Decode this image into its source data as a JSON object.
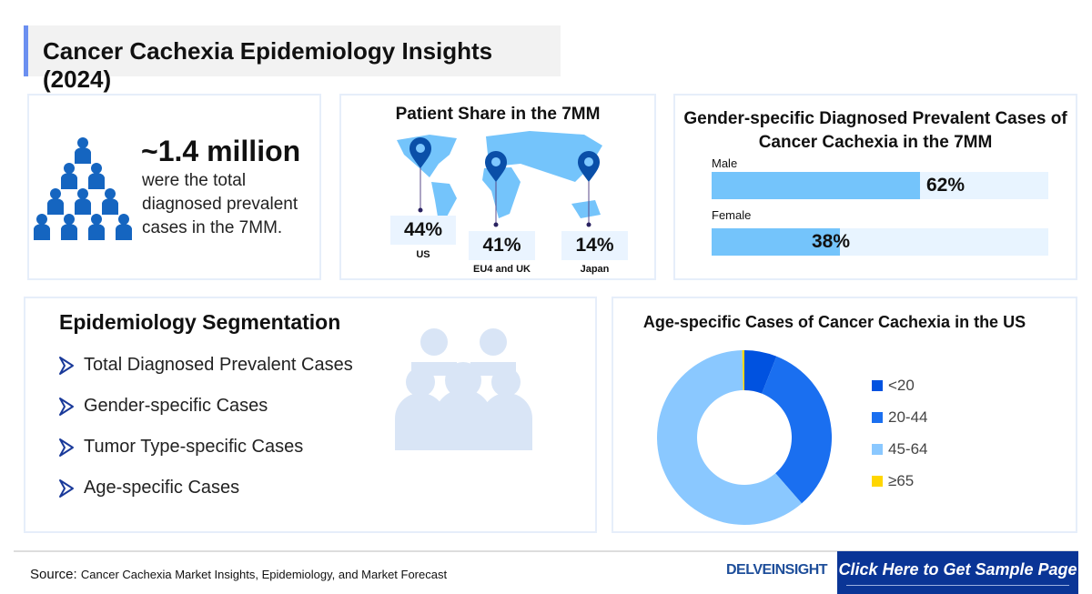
{
  "title": "Cancer Cachexia Epidemiology Insights (2024)",
  "total": {
    "value": "~1.4 million",
    "lines": [
      "were the total",
      "diagnosed prevalent",
      "cases in the 7MM."
    ]
  },
  "patient_share": {
    "title": "Patient Share in the 7MM",
    "items": [
      {
        "pct": "44%",
        "label": "US"
      },
      {
        "pct": "41%",
        "label": "EU4 and UK"
      },
      {
        "pct": "14%",
        "label": "Japan"
      }
    ]
  },
  "gender": {
    "title_line1": "Gender-specific Diagnosed Prevalent Cases of",
    "title_line2": "Cancer Cachexia in the 7MM",
    "items": [
      {
        "label": "Male",
        "pct": "62%",
        "value": 62
      },
      {
        "label": "Female",
        "pct": "38%",
        "value": 38
      }
    ]
  },
  "segmentation": {
    "title": "Epidemiology Segmentation",
    "items": [
      "Total Diagnosed Prevalent Cases",
      "Gender-specific Cases",
      "Tumor Type-specific Cases",
      "Age-specific Cases"
    ]
  },
  "chart_data": {
    "type": "pie",
    "title": "Age-specific Cases of Cancer Cachexia in the US",
    "categories": [
      "<20",
      "20-44",
      "45-64",
      "≥65"
    ],
    "values": [
      6,
      32.6,
      61,
      0.4
    ],
    "colors": [
      "#0052e0",
      "#1a6ff0",
      "#8ac8ff",
      "#ffd600"
    ],
    "legend": "right"
  },
  "footer": {
    "source_label": "Source:",
    "source_text": "Cancer Cachexia Market Insights, Epidemiology, and Market Forecast",
    "logo": "DELVEINSIGHT",
    "cta": "Click Here to Get Sample Page"
  },
  "colors": {
    "accent": "#6b8ff0",
    "cta_bg": "#0a3596",
    "bar": "#74c4fb",
    "icon": "#1565c0"
  }
}
